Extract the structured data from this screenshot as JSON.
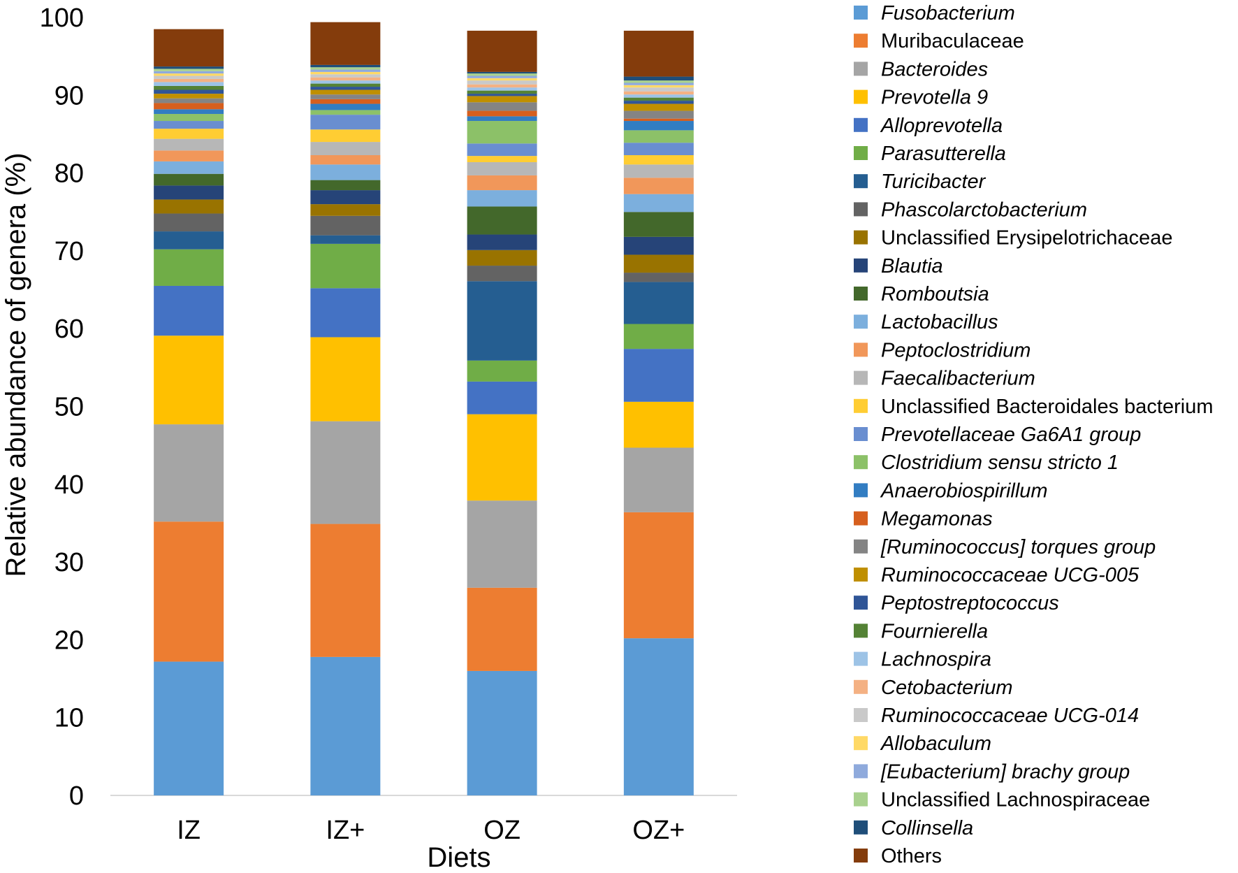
{
  "chart_data": {
    "type": "bar",
    "stacked": true,
    "title": "",
    "xlabel": "Diets",
    "ylabel": "Relative abundance of genera (%)",
    "ylim": [
      0,
      100
    ],
    "yticks": [
      0,
      10,
      20,
      30,
      40,
      50,
      60,
      70,
      80,
      90,
      100
    ],
    "categories": [
      "IZ",
      "IZ+",
      "OZ",
      "OZ+"
    ],
    "legend_position": "right",
    "series": [
      {
        "name": "Fusobacterium",
        "italic": true,
        "color": "#5B9BD5",
        "values": [
          17.2,
          17.8,
          16.0,
          20.2
        ]
      },
      {
        "name": "Muribaculaceae",
        "italic": false,
        "color": "#ED7D31",
        "values": [
          18.0,
          17.1,
          10.7,
          16.2
        ]
      },
      {
        "name": "Bacteroides",
        "italic": true,
        "color": "#A5A5A5",
        "values": [
          12.5,
          13.2,
          11.2,
          8.3
        ]
      },
      {
        "name": "Prevotella 9",
        "italic": true,
        "color": "#FFC000",
        "values": [
          11.4,
          10.8,
          11.1,
          5.9
        ]
      },
      {
        "name": "Alloprevotella",
        "italic": true,
        "color": "#4472C4",
        "values": [
          6.4,
          6.3,
          4.2,
          6.8
        ]
      },
      {
        "name": "Parasutterella",
        "italic": true,
        "color": "#70AD47",
        "values": [
          4.7,
          5.7,
          2.7,
          3.2
        ]
      },
      {
        "name": "Turicibacter",
        "italic": true,
        "color": "#255E91",
        "values": [
          2.3,
          1.1,
          10.2,
          5.4
        ]
      },
      {
        "name": "Phascolarctobacterium",
        "italic": true,
        "color": "#636363",
        "values": [
          2.3,
          2.5,
          2.0,
          1.2
        ]
      },
      {
        "name": "Unclassified Erysipelotrichaceae",
        "italic": false,
        "color": "#997300",
        "values": [
          1.8,
          1.5,
          2.0,
          2.3
        ]
      },
      {
        "name": "Blautia",
        "italic": true,
        "color": "#264478",
        "values": [
          1.8,
          1.8,
          2.0,
          2.3
        ]
      },
      {
        "name": "Romboutsia",
        "italic": true,
        "color": "#43682B",
        "values": [
          1.5,
          1.3,
          3.6,
          3.2
        ]
      },
      {
        "name": "Lactobacillus",
        "italic": true,
        "color": "#7CAFDD",
        "values": [
          1.6,
          2.0,
          2.1,
          2.3
        ]
      },
      {
        "name": "Peptoclostridium",
        "italic": true,
        "color": "#F1975A",
        "values": [
          1.4,
          1.2,
          1.9,
          2.1
        ]
      },
      {
        "name": "Faecalibacterium",
        "italic": true,
        "color": "#B7B7B7",
        "values": [
          1.5,
          1.7,
          1.7,
          1.7
        ]
      },
      {
        "name": "Unclassified Bacteroidales bacterium",
        "italic": false,
        "color": "#FFCD33",
        "values": [
          1.3,
          1.6,
          0.8,
          1.2
        ]
      },
      {
        "name": "Prevotellaceae Ga6A1 group",
        "italic": true,
        "color": "#698ED0",
        "values": [
          1.0,
          1.9,
          1.6,
          1.6
        ]
      },
      {
        "name": "Clostridium sensu stricto 1",
        "italic": true,
        "color": "#8CC168",
        "values": [
          0.9,
          0.6,
          2.9,
          1.6
        ]
      },
      {
        "name": "Anaerobiospirillum",
        "italic": true,
        "color": "#327DC2",
        "values": [
          0.6,
          0.8,
          0.6,
          1.2
        ]
      },
      {
        "name": "Megamonas",
        "italic": true,
        "color": "#D65F1E",
        "values": [
          0.8,
          0.6,
          0.7,
          0.3
        ]
      },
      {
        "name": "[Ruminococcus] torques group",
        "italic": true,
        "color": "#848484",
        "values": [
          0.6,
          0.6,
          1.1,
          1.0
        ]
      },
      {
        "name": "Ruminococcaceae UCG-005",
        "italic": true,
        "color": "#BF8F00",
        "values": [
          0.6,
          0.6,
          0.8,
          0.9
        ]
      },
      {
        "name": "Peptostreptococcus",
        "italic": true,
        "color": "#2F5597",
        "values": [
          0.5,
          0.4,
          0.3,
          0.4
        ]
      },
      {
        "name": "Fournierella",
        "italic": true,
        "color": "#548235",
        "values": [
          0.5,
          0.4,
          0.4,
          0.4
        ]
      },
      {
        "name": "Lachnospira",
        "italic": true,
        "color": "#9DC3E6",
        "values": [
          0.5,
          0.4,
          0.4,
          0.4
        ]
      },
      {
        "name": "Cetobacterium",
        "italic": true,
        "color": "#F4B183",
        "values": [
          0.4,
          0.4,
          0.4,
          0.4
        ]
      },
      {
        "name": "Ruminococcaceae UCG-014",
        "italic": true,
        "color": "#C9C9C9",
        "values": [
          0.4,
          0.4,
          0.5,
          0.5
        ]
      },
      {
        "name": "Allobaculum",
        "italic": true,
        "color": "#FFD966",
        "values": [
          0.3,
          0.3,
          0.3,
          0.3
        ]
      },
      {
        "name": "[Eubacterium] brachy group",
        "italic": true,
        "color": "#8FAADC",
        "values": [
          0.3,
          0.3,
          0.3,
          0.3
        ]
      },
      {
        "name": "Unclassified Lachnospiraceae",
        "italic": false,
        "color": "#A9D18E",
        "values": [
          0.3,
          0.3,
          0.3,
          0.3
        ]
      },
      {
        "name": "Collinsella",
        "italic": true,
        "color": "#1F4E79",
        "values": [
          0.3,
          0.3,
          0.2,
          0.5
        ]
      },
      {
        "name": "Others",
        "italic": false,
        "color": "#843C0C",
        "values": [
          4.8,
          5.5,
          5.3,
          5.9
        ]
      }
    ]
  }
}
